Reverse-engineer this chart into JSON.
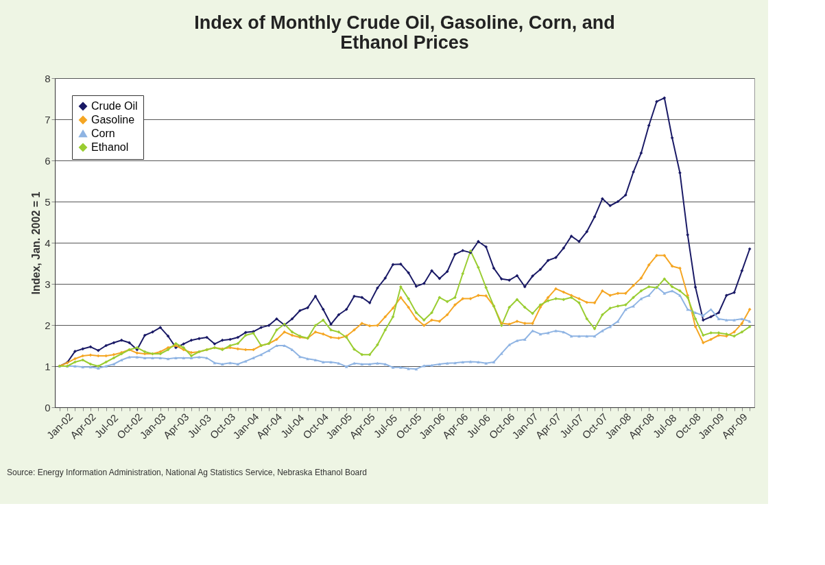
{
  "chart_data": {
    "type": "line",
    "title": "Index of Monthly Crude Oil, Gasoline, Corn, and Ethanol Prices",
    "ylabel": "Index, Jan. 2002 = 1",
    "categories": [
      "Jan-02",
      null,
      null,
      "Apr-02",
      null,
      null,
      "Jul-02",
      null,
      null,
      "Oct-02",
      null,
      null,
      "Jan-03",
      null,
      null,
      "Apr-03",
      null,
      null,
      "Jul-03",
      null,
      null,
      "Oct-03",
      null,
      null,
      "Jan-04",
      null,
      null,
      "Apr-04",
      null,
      null,
      "Jul-04",
      null,
      null,
      "Oct-04",
      null,
      null,
      "Jan-05",
      null,
      null,
      "Apr-05",
      null,
      null,
      "Jul-05",
      null,
      null,
      "Oct-05",
      null,
      null,
      "Jan-06",
      null,
      null,
      "Apr-06",
      null,
      null,
      "Jul-06",
      null,
      null,
      "Oct-06",
      null,
      null,
      "Jan-07",
      null,
      null,
      "Apr-07",
      null,
      null,
      "Jul-07",
      null,
      null,
      "Oct-07",
      null,
      null,
      "Jan-08",
      null,
      null,
      "Apr-08",
      null,
      null,
      "Jul-08",
      null,
      null,
      "Oct-08",
      null,
      null,
      "Jan-09",
      null,
      null,
      "Apr-09",
      null,
      null
    ],
    "series": [
      {
        "name": "Crude Oil",
        "color": "#1a1a66",
        "marker": "diamond",
        "values": [
          1.0,
          1.09,
          1.36,
          1.42,
          1.47,
          1.38,
          1.5,
          1.57,
          1.63,
          1.57,
          1.4,
          1.75,
          1.83,
          1.94,
          1.73,
          1.45,
          1.54,
          1.63,
          1.67,
          1.7,
          1.54,
          1.63,
          1.65,
          1.7,
          1.82,
          1.84,
          1.94,
          1.99,
          2.15,
          2.0,
          2.15,
          2.35,
          2.42,
          2.7,
          2.38,
          2.02,
          2.25,
          2.38,
          2.7,
          2.67,
          2.54,
          2.9,
          3.14,
          3.47,
          3.48,
          3.27,
          2.94,
          3.01,
          3.32,
          3.13,
          3.3,
          3.72,
          3.81,
          3.76,
          4.03,
          3.9,
          3.38,
          3.12,
          3.09,
          3.2,
          2.93,
          3.19,
          3.35,
          3.57,
          3.64,
          3.87,
          4.16,
          4.03,
          4.27,
          4.63,
          5.07,
          4.9,
          5.0,
          5.16,
          5.72,
          6.18,
          6.85,
          7.43,
          7.52,
          6.55,
          5.7,
          4.19,
          2.92,
          2.12,
          2.2,
          2.3,
          2.72,
          2.79,
          3.32,
          3.85
        ]
      },
      {
        "name": "Gasoline",
        "color": "#f5a623",
        "marker": "diamond",
        "values": [
          1.0,
          1.08,
          1.18,
          1.25,
          1.27,
          1.25,
          1.25,
          1.28,
          1.33,
          1.4,
          1.32,
          1.3,
          1.3,
          1.35,
          1.45,
          1.5,
          1.4,
          1.33,
          1.35,
          1.4,
          1.45,
          1.42,
          1.45,
          1.42,
          1.4,
          1.4,
          1.5,
          1.55,
          1.65,
          1.83,
          1.75,
          1.7,
          1.68,
          1.83,
          1.78,
          1.7,
          1.68,
          1.73,
          1.88,
          2.04,
          1.98,
          1.99,
          2.2,
          2.41,
          2.67,
          2.43,
          2.15,
          1.99,
          2.12,
          2.09,
          2.25,
          2.49,
          2.64,
          2.64,
          2.72,
          2.71,
          2.46,
          2.04,
          2.02,
          2.09,
          2.04,
          2.04,
          2.43,
          2.67,
          2.88,
          2.8,
          2.72,
          2.64,
          2.55,
          2.54,
          2.83,
          2.72,
          2.77,
          2.77,
          2.96,
          3.14,
          3.46,
          3.69,
          3.69,
          3.43,
          3.38,
          2.72,
          1.96,
          1.57,
          1.65,
          1.75,
          1.73,
          1.83,
          2.04,
          2.38
        ]
      },
      {
        "name": "Corn",
        "color": "#8fb4e3",
        "marker": "triangle",
        "values": [
          1.0,
          1.0,
          1.0,
          0.98,
          0.98,
          0.95,
          1.0,
          1.05,
          1.15,
          1.22,
          1.22,
          1.2,
          1.2,
          1.2,
          1.18,
          1.2,
          1.2,
          1.2,
          1.22,
          1.2,
          1.08,
          1.05,
          1.08,
          1.05,
          1.12,
          1.2,
          1.28,
          1.38,
          1.5,
          1.5,
          1.4,
          1.23,
          1.18,
          1.15,
          1.1,
          1.1,
          1.07,
          0.99,
          1.07,
          1.05,
          1.05,
          1.07,
          1.05,
          0.97,
          0.97,
          0.94,
          0.93,
          1.01,
          1.02,
          1.05,
          1.07,
          1.08,
          1.1,
          1.11,
          1.1,
          1.07,
          1.1,
          1.31,
          1.52,
          1.62,
          1.65,
          1.86,
          1.78,
          1.81,
          1.86,
          1.83,
          1.73,
          1.73,
          1.73,
          1.73,
          1.86,
          1.96,
          2.09,
          2.38,
          2.46,
          2.64,
          2.72,
          2.93,
          2.77,
          2.83,
          2.72,
          2.38,
          2.3,
          2.23,
          2.38,
          2.15,
          2.12,
          2.12,
          2.15,
          2.09
        ]
      },
      {
        "name": "Ethanol",
        "color": "#9acd32",
        "marker": "diamond",
        "values": [
          1.0,
          1.0,
          1.1,
          1.15,
          1.05,
          1.0,
          1.1,
          1.2,
          1.3,
          1.4,
          1.45,
          1.35,
          1.3,
          1.3,
          1.4,
          1.55,
          1.45,
          1.25,
          1.35,
          1.4,
          1.45,
          1.4,
          1.5,
          1.55,
          1.75,
          1.8,
          1.5,
          1.55,
          1.88,
          2.02,
          1.83,
          1.73,
          1.68,
          1.99,
          2.12,
          1.88,
          1.83,
          1.7,
          1.41,
          1.28,
          1.28,
          1.52,
          1.88,
          2.2,
          2.93,
          2.64,
          2.3,
          2.12,
          2.3,
          2.67,
          2.57,
          2.67,
          3.25,
          3.8,
          3.4,
          2.91,
          2.46,
          1.99,
          2.43,
          2.62,
          2.43,
          2.28,
          2.49,
          2.59,
          2.64,
          2.62,
          2.67,
          2.54,
          2.15,
          1.91,
          2.25,
          2.41,
          2.46,
          2.49,
          2.67,
          2.83,
          2.93,
          2.91,
          3.12,
          2.93,
          2.83,
          2.67,
          2.15,
          1.75,
          1.81,
          1.81,
          1.78,
          1.73,
          1.83,
          1.96
        ]
      }
    ],
    "ylim": [
      0,
      8
    ],
    "yticks": [
      0,
      1,
      2,
      3,
      4,
      5,
      6,
      7,
      8
    ],
    "grid": "y",
    "legend": "top left",
    "line_style": "solid",
    "annotations": [
      "Source: Energy Information Administration, National Ag Statistics Service, Nebraska Ethanol Board"
    ]
  }
}
